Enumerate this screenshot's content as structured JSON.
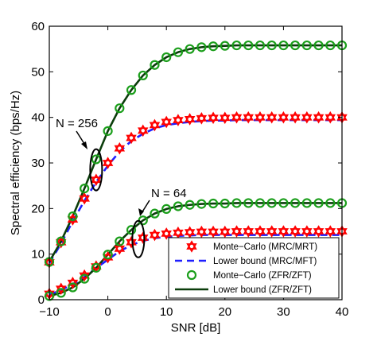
{
  "chart_data": {
    "type": "line",
    "xlabel": "SNR [dB]",
    "ylabel": "Spectral efficiency (bps/Hz)",
    "xlim": [
      -10,
      40
    ],
    "ylim": [
      0,
      60
    ],
    "xticks": [
      -10,
      0,
      10,
      20,
      30,
      40
    ],
    "yticks": [
      0,
      10,
      20,
      30,
      40,
      50,
      60
    ],
    "grid": false,
    "legend_position": "bottom-right",
    "colors": {
      "mc_mrc": "#ff0000",
      "lb_mrc": "#1f1fff",
      "mc_zfr": "#1a9e1a",
      "lb_zfr": "#0b3d0b"
    },
    "annotations": [
      {
        "text": "N = 256"
      },
      {
        "text": "N = 64"
      }
    ],
    "x": [
      -10,
      -8,
      -6,
      -4,
      -2,
      0,
      2,
      4,
      6,
      8,
      10,
      12,
      14,
      16,
      18,
      20,
      22,
      24,
      26,
      28,
      30,
      32,
      34,
      36,
      38,
      40
    ],
    "series": [
      {
        "name": "Monte−Carlo (MRC/MRT)",
        "group": "N = 256",
        "style": "hexagram-marker",
        "color": "#ff0000",
        "values": [
          8.2,
          12.6,
          17.6,
          22.2,
          26.3,
          30.0,
          33.2,
          35.5,
          37.1,
          38.3,
          39.0,
          39.4,
          39.6,
          39.8,
          39.9,
          39.9,
          40.0,
          40.0,
          40.0,
          40.0,
          40.0,
          40.0,
          40.0,
          40.0,
          40.0,
          40.0
        ]
      },
      {
        "name": "Lower bound (MRC/MFT)",
        "group": "N = 256",
        "style": "dashed-line",
        "color": "#1f1fff",
        "values": [
          8.0,
          12.3,
          17.2,
          21.7,
          25.8,
          29.4,
          32.5,
          34.8,
          36.4,
          37.6,
          38.3,
          38.7,
          39.0,
          39.2,
          39.3,
          39.3,
          39.4,
          39.4,
          39.4,
          39.4,
          39.4,
          39.4,
          39.4,
          39.4,
          39.4,
          39.4
        ]
      },
      {
        "name": "Monte−Carlo (ZFR/ZFT)",
        "group": "N = 256",
        "style": "circle-marker",
        "color": "#1a9e1a",
        "values": [
          8.3,
          12.8,
          18.3,
          24.4,
          30.8,
          37.0,
          42.0,
          46.0,
          49.2,
          51.5,
          53.2,
          54.3,
          55.0,
          55.4,
          55.6,
          55.7,
          55.8,
          55.8,
          55.8,
          55.8,
          55.8,
          55.8,
          55.8,
          55.8,
          55.8,
          55.8
        ]
      },
      {
        "name": "Lower bound (ZFR/ZFT)",
        "group": "N = 256",
        "style": "solid-line",
        "color": "#0b3d0b",
        "values": [
          8.3,
          12.8,
          18.3,
          24.4,
          30.8,
          37.0,
          42.0,
          46.0,
          49.2,
          51.5,
          53.2,
          54.3,
          55.0,
          55.4,
          55.6,
          55.7,
          55.8,
          55.8,
          55.8,
          55.8,
          55.8,
          55.8,
          55.8,
          55.8,
          55.8,
          55.8
        ]
      },
      {
        "name": "Monte−Carlo (MRC/MRT)",
        "group": "N = 64",
        "style": "hexagram-marker",
        "color": "#ff0000",
        "values": [
          1.3,
          2.4,
          3.7,
          5.3,
          7.3,
          9.3,
          11.2,
          12.6,
          13.6,
          14.2,
          14.5,
          14.7,
          14.8,
          14.9,
          14.9,
          14.9,
          15.0,
          15.0,
          15.0,
          15.0,
          15.0,
          15.0,
          15.0,
          15.0,
          15.0,
          15.0
        ]
      },
      {
        "name": "Lower bound (MRC/MFT)",
        "group": "N = 64",
        "style": "dashed-line",
        "color": "#1f1fff",
        "values": [
          1.1,
          2.1,
          3.4,
          5.0,
          6.9,
          8.8,
          10.6,
          12.0,
          12.9,
          13.5,
          13.8,
          14.0,
          14.1,
          14.2,
          14.2,
          14.2,
          14.2,
          14.2,
          14.2,
          14.2,
          14.2,
          14.2,
          14.2,
          14.2,
          14.2,
          14.2
        ]
      },
      {
        "name": "Monte−Carlo (ZFR/ZFT)",
        "group": "N = 64",
        "style": "circle-marker",
        "color": "#1a9e1a",
        "values": [
          0.8,
          1.5,
          2.7,
          4.6,
          7.0,
          9.9,
          12.8,
          15.3,
          17.4,
          18.9,
          19.9,
          20.5,
          20.8,
          21.0,
          21.1,
          21.1,
          21.2,
          21.2,
          21.2,
          21.2,
          21.2,
          21.2,
          21.2,
          21.2,
          21.2,
          21.2
        ]
      },
      {
        "name": "Lower bound (ZFR/ZFT)",
        "group": "N = 64",
        "style": "solid-line",
        "color": "#0b3d0b",
        "values": [
          0.8,
          1.5,
          2.7,
          4.6,
          7.0,
          9.9,
          12.8,
          15.3,
          17.4,
          18.9,
          19.9,
          20.5,
          20.8,
          21.0,
          21.1,
          21.1,
          21.2,
          21.2,
          21.2,
          21.2,
          21.2,
          21.2,
          21.2,
          21.2,
          21.2,
          21.2
        ]
      }
    ],
    "legend": [
      {
        "label": "Monte−Carlo (MRC/MRT)",
        "style": "hexagram-marker",
        "color": "#ff0000"
      },
      {
        "label": "Lower bound (MRC/MFT)",
        "style": "dashed-line",
        "color": "#1f1fff"
      },
      {
        "label": "Monte−Carlo (ZFR/ZFT)",
        "style": "circle-marker",
        "color": "#1a9e1a"
      },
      {
        "label": "Lower bound (ZFR/ZFT)",
        "style": "solid-line",
        "color": "#0b3d0b"
      }
    ]
  }
}
